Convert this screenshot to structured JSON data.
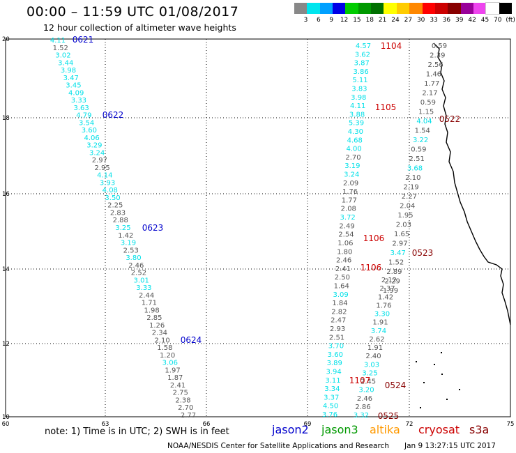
{
  "title": "00:00 – 11:59 UTC 01/08/2017",
  "subtitle": "12 hour collection of altimeter wave heights",
  "legend": {
    "labels": [
      "3",
      "6",
      "9",
      "12",
      "15",
      "18",
      "21",
      "24",
      "27",
      "30",
      "33",
      "36",
      "39",
      "42",
      "45",
      "70",
      "(ft)"
    ],
    "colors": [
      "#888888",
      "#00e5ee",
      "#00a0ff",
      "#0000e6",
      "#00cc00",
      "#009900",
      "#007000",
      "#ffff00",
      "#ffcc00",
      "#ff8800",
      "#ff0000",
      "#cc0000",
      "#880000",
      "#990099",
      "#ee44ee",
      "#ffffff",
      "#000000"
    ]
  },
  "axes": {
    "x_ticks": [
      "60",
      "63",
      "66",
      "69",
      "72",
      "75"
    ],
    "y_ticks": [
      "10",
      "12",
      "14",
      "16",
      "18",
      "20"
    ]
  },
  "colors": {
    "jason2": "#0000cc",
    "jason3": "#009900",
    "altika": "#ff9900",
    "cryosat": "#cc0000",
    "s3a": "#880000",
    "cyan": "#00e0e8",
    "gray": "#555555"
  },
  "tracks": [
    {
      "name": "track-1",
      "values": [
        [
          "4.11",
          "cyan"
        ],
        [
          "1.52",
          "gray"
        ],
        [
          "3.02",
          "cyan"
        ],
        [
          "3.44",
          "cyan"
        ],
        [
          "3.98",
          "cyan"
        ],
        [
          "3.47",
          "cyan"
        ],
        [
          "3.45",
          "cyan"
        ],
        [
          "4.09",
          "cyan"
        ],
        [
          "3.33",
          "cyan"
        ],
        [
          "3.63",
          "cyan"
        ],
        [
          "4.79",
          "cyan"
        ],
        [
          "3.54",
          "cyan"
        ],
        [
          "3.60",
          "cyan"
        ],
        [
          "4.06",
          "cyan"
        ],
        [
          "3.29",
          "cyan"
        ],
        [
          "3.24",
          "cyan"
        ],
        [
          "2.97",
          "gray"
        ],
        [
          "2.95",
          "gray"
        ],
        [
          "4.14",
          "cyan"
        ],
        [
          "3.93",
          "cyan"
        ],
        [
          "4.08",
          "cyan"
        ],
        [
          "3.50",
          "cyan"
        ],
        [
          "2.25",
          "gray"
        ],
        [
          "2.83",
          "gray"
        ],
        [
          "2.88",
          "gray"
        ],
        [
          "3.25",
          "cyan"
        ],
        [
          "1.42",
          "gray"
        ],
        [
          "3.19",
          "cyan"
        ],
        [
          "2.53",
          "gray"
        ],
        [
          "3.80",
          "cyan"
        ],
        [
          "2.46",
          "gray"
        ],
        [
          "2.52",
          "gray"
        ],
        [
          "3.01",
          "cyan"
        ],
        [
          "3.33",
          "cyan"
        ],
        [
          "2.44",
          "gray"
        ],
        [
          "1.71",
          "gray"
        ],
        [
          "1.98",
          "gray"
        ],
        [
          "2.85",
          "gray"
        ],
        [
          "1.26",
          "gray"
        ],
        [
          "2.34",
          "gray"
        ],
        [
          "2.10",
          "gray"
        ],
        [
          "1.58",
          "gray"
        ],
        [
          "1.20",
          "gray"
        ],
        [
          "3.06",
          "cyan"
        ],
        [
          "1.97",
          "gray"
        ],
        [
          "1.87",
          "gray"
        ],
        [
          "2.41",
          "gray"
        ],
        [
          "2.75",
          "gray"
        ],
        [
          "2.38",
          "gray"
        ],
        [
          "2.70",
          "gray"
        ],
        [
          "2.77",
          "gray"
        ]
      ]
    },
    {
      "name": "track-2",
      "values": [
        [
          "4.57",
          "cyan"
        ],
        [
          "3.62",
          "cyan"
        ],
        [
          "3.87",
          "cyan"
        ],
        [
          "3.86",
          "cyan"
        ],
        [
          "5.11",
          "cyan"
        ],
        [
          "3.83",
          "cyan"
        ],
        [
          "3.98",
          "cyan"
        ],
        [
          "4.11",
          "cyan"
        ],
        [
          "3.88",
          "cyan"
        ],
        [
          "5.39",
          "cyan"
        ],
        [
          "4.30",
          "cyan"
        ],
        [
          "4.68",
          "cyan"
        ],
        [
          "4.00",
          "cyan"
        ],
        [
          "2.70",
          "gray"
        ],
        [
          "3.19",
          "cyan"
        ],
        [
          "3.24",
          "cyan"
        ],
        [
          "2.09",
          "gray"
        ],
        [
          "1.76",
          "gray"
        ],
        [
          "1.77",
          "gray"
        ],
        [
          "2.08",
          "gray"
        ],
        [
          "3.72",
          "cyan"
        ],
        [
          "2.49",
          "gray"
        ],
        [
          "2.54",
          "gray"
        ],
        [
          "1.06",
          "gray"
        ],
        [
          "1.80",
          "gray"
        ],
        [
          "2.46",
          "gray"
        ],
        [
          "2.41",
          "gray"
        ],
        [
          "2.50",
          "gray"
        ],
        [
          "1.64",
          "gray"
        ],
        [
          "3.09",
          "cyan"
        ],
        [
          "1.84",
          "gray"
        ],
        [
          "2.82",
          "gray"
        ],
        [
          "2.47",
          "gray"
        ],
        [
          "2.93",
          "gray"
        ],
        [
          "2.51",
          "gray"
        ],
        [
          "3.70",
          "cyan"
        ],
        [
          "3.60",
          "cyan"
        ],
        [
          "3.89",
          "cyan"
        ],
        [
          "3.94",
          "cyan"
        ],
        [
          "3.11",
          "cyan"
        ],
        [
          "3.34",
          "cyan"
        ],
        [
          "3.37",
          "cyan"
        ],
        [
          "4.50",
          "cyan"
        ],
        [
          "3.76",
          "cyan"
        ]
      ]
    },
    {
      "name": "track-3",
      "values": [
        [
          "2.12",
          "gray"
        ],
        [
          "2.37",
          "gray"
        ],
        [
          "1.42",
          "gray"
        ],
        [
          "1.76",
          "gray"
        ],
        [
          "3.30",
          "cyan"
        ],
        [
          "1.91",
          "gray"
        ],
        [
          "3.74",
          "cyan"
        ],
        [
          "2.62",
          "gray"
        ],
        [
          "1.91",
          "gray"
        ],
        [
          "2.40",
          "gray"
        ],
        [
          "3.03",
          "cyan"
        ],
        [
          "3.25",
          "cyan"
        ],
        [
          "2.45",
          "gray"
        ],
        [
          "3.20",
          "cyan"
        ],
        [
          "2.46",
          "gray"
        ],
        [
          "2.86",
          "gray"
        ],
        [
          "3.32",
          "cyan"
        ]
      ]
    },
    {
      "name": "track-4",
      "values": [
        [
          "0.59",
          "gray"
        ],
        [
          "2.39",
          "gray"
        ],
        [
          "2.56",
          "gray"
        ],
        [
          "1.46",
          "gray"
        ],
        [
          "1.77",
          "gray"
        ],
        [
          "2.17",
          "gray"
        ],
        [
          "0.59",
          "gray"
        ],
        [
          "1.15",
          "gray"
        ],
        [
          "4.04",
          "cyan"
        ],
        [
          "1.54",
          "gray"
        ],
        [
          "3.22",
          "cyan"
        ],
        [
          "0.59",
          "gray"
        ],
        [
          "2.51",
          "gray"
        ],
        [
          "3.68",
          "cyan"
        ],
        [
          "2.10",
          "gray"
        ],
        [
          "2.19",
          "gray"
        ],
        [
          "2.27",
          "gray"
        ],
        [
          "2.04",
          "gray"
        ],
        [
          "1.95",
          "gray"
        ],
        [
          "2.03",
          "gray"
        ],
        [
          "1.65",
          "gray"
        ],
        [
          "2.97",
          "gray"
        ],
        [
          "3.47",
          "cyan"
        ],
        [
          "1.52",
          "gray"
        ],
        [
          "2.89",
          "gray"
        ],
        [
          "2.29",
          "gray"
        ],
        [
          "1.99",
          "gray"
        ]
      ]
    }
  ],
  "time_labels": [
    {
      "text": "0621",
      "color": "jason2"
    },
    {
      "text": "0622",
      "color": "jason2"
    },
    {
      "text": "0623",
      "color": "jason2"
    },
    {
      "text": "0624",
      "color": "jason2"
    },
    {
      "text": "1104",
      "color": "cryosat"
    },
    {
      "text": "1105",
      "color": "cryosat"
    },
    {
      "text": "1106",
      "color": "cryosat"
    },
    {
      "text": "1106",
      "color": "cryosat"
    },
    {
      "text": "1107",
      "color": "cryosat"
    },
    {
      "text": "0522",
      "color": "s3a"
    },
    {
      "text": "0523",
      "color": "s3a"
    },
    {
      "text": "0524",
      "color": "s3a"
    },
    {
      "text": "0525",
      "color": "s3a"
    }
  ],
  "note": "note:  1) Time is in UTC;  2) SWH is in feet",
  "satellites": [
    {
      "name": "jason2",
      "color": "#0000cc"
    },
    {
      "name": "jason3",
      "color": "#009900"
    },
    {
      "name": "altika",
      "color": "#ff9900"
    },
    {
      "name": "cryosat",
      "color": "#cc0000"
    },
    {
      "name": "s3a",
      "color": "#880000"
    }
  ],
  "credit": "NOAA/NESDIS Center for Satellite Applications and Research",
  "timestamp": "Jan  9 13:27:15 UTC 2017"
}
